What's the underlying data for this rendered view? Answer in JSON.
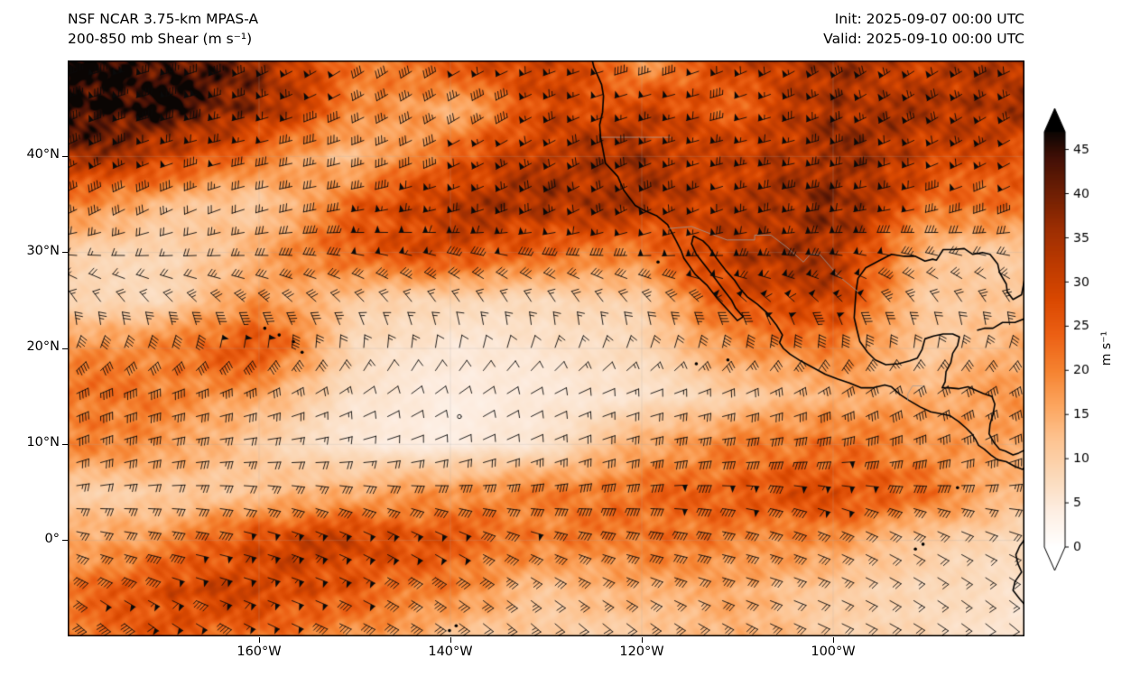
{
  "header": {
    "title_line1": "NSF NCAR 3.75-km MPAS-A",
    "title_line2": "200-850 mb Shear (m s⁻¹)",
    "init": "Init: 2025-09-07 00:00 UTC",
    "valid": "Valid: 2025-09-10 00:00 UTC"
  },
  "chart_data": {
    "type": "heatmap",
    "title": "200-850 mb Shear (m s⁻¹)",
    "model": "NSF NCAR 3.75-km MPAS-A",
    "init_time": "Init: 2025-09-07 00:00 UTC",
    "valid_time": "Valid: 2025-09-10 00:00 UTC",
    "units": "m s⁻¹",
    "lon_range": [
      -180,
      -80
    ],
    "lat_range": [
      -10,
      50
    ],
    "lon_ticks": [
      -160,
      -140,
      -120,
      -100
    ],
    "lon_tick_labels": [
      "160°W",
      "140°W",
      "120°W",
      "100°W"
    ],
    "lat_ticks": [
      40,
      30,
      20,
      10,
      0
    ],
    "lat_tick_labels": [
      "40°N",
      "30°N",
      "20°N",
      "10°N",
      "0°"
    ],
    "colorbar": {
      "label": "m s⁻¹",
      "ticks": [
        0,
        5,
        10,
        15,
        20,
        25,
        30,
        35,
        40,
        45
      ],
      "vmin": 0,
      "vmax": 47,
      "extend": "both",
      "stops": [
        [
          0,
          "#ffffff"
        ],
        [
          4,
          "#fdeee2"
        ],
        [
          8,
          "#fbd9b9"
        ],
        [
          12,
          "#fdc492"
        ],
        [
          16,
          "#fca55f"
        ],
        [
          20,
          "#f58230"
        ],
        [
          24,
          "#ec6014"
        ],
        [
          28,
          "#d94801"
        ],
        [
          32,
          "#bc3a01"
        ],
        [
          36,
          "#9c2e02"
        ],
        [
          40,
          "#6f1f04"
        ],
        [
          44,
          "#431006"
        ],
        [
          47,
          "#0a0503"
        ]
      ]
    },
    "grid_lons": [
      -180,
      -170,
      -160,
      -150,
      -140,
      -130,
      -120,
      -110,
      -100,
      -90,
      -80
    ],
    "grid_lats": [
      50,
      45,
      40,
      35,
      30,
      25,
      20,
      15,
      10,
      5,
      0,
      -5,
      -10
    ],
    "shear_grid": [
      [
        46,
        45,
        38,
        20,
        26,
        32,
        16,
        30,
        35,
        30,
        34
      ],
      [
        47,
        45,
        36,
        20,
        14,
        28,
        30,
        24,
        35,
        33,
        35
      ],
      [
        36,
        30,
        20,
        12,
        24,
        33,
        35,
        30,
        37,
        30,
        25
      ],
      [
        20,
        13,
        10,
        24,
        33,
        35,
        33,
        30,
        38,
        22,
        22
      ],
      [
        10,
        8,
        15,
        25,
        28,
        22,
        20,
        33,
        35,
        12,
        10
      ],
      [
        8,
        8,
        18,
        10,
        8,
        8,
        10,
        28,
        30,
        10,
        12
      ],
      [
        18,
        20,
        28,
        8,
        5,
        6,
        8,
        18,
        20,
        10,
        15
      ],
      [
        22,
        20,
        15,
        6,
        4,
        5,
        6,
        10,
        15,
        15,
        18
      ],
      [
        20,
        18,
        10,
        5,
        4,
        6,
        15,
        20,
        22,
        18,
        15
      ],
      [
        10,
        10,
        12,
        15,
        18,
        20,
        22,
        25,
        28,
        22,
        12
      ],
      [
        15,
        18,
        28,
        30,
        25,
        20,
        22,
        20,
        18,
        10,
        8
      ],
      [
        20,
        28,
        30,
        25,
        20,
        12,
        15,
        15,
        10,
        8,
        6
      ],
      [
        22,
        25,
        22,
        18,
        12,
        10,
        10,
        15,
        10,
        8,
        5
      ]
    ],
    "wind_barbs": "shear-vector barbs on regular grid; half barb 2.5, full barb 5, pennant 25 m s⁻¹; open circle where < 5"
  }
}
